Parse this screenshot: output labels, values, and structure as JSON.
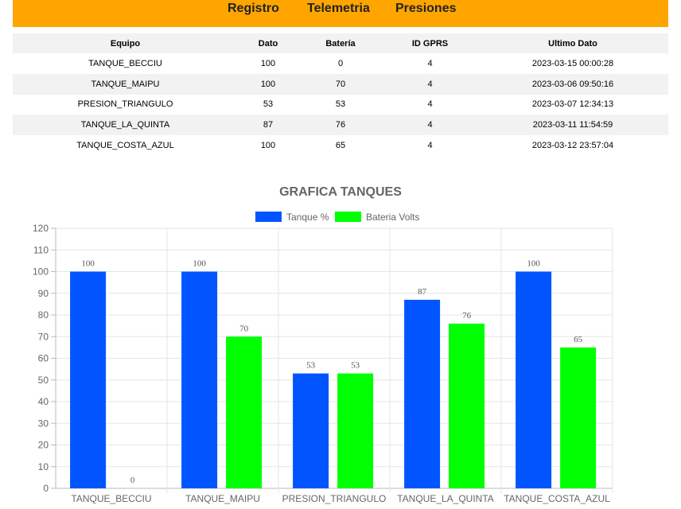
{
  "nav": {
    "links": [
      "Registro",
      "Telemetria",
      "Presiones"
    ]
  },
  "table": {
    "headers": [
      "Equipo",
      "Dato",
      "Batería",
      "ID GPRS",
      "Ultimo Dato"
    ],
    "rows": [
      [
        "TANQUE_BECCIU",
        "100",
        "0",
        "4",
        "2023-03-15 00:00:28"
      ],
      [
        "TANQUE_MAIPU",
        "100",
        "70",
        "4",
        "2023-03-06 09:50:16"
      ],
      [
        "PRESION_TRIANGULO",
        "53",
        "53",
        "4",
        "2023-03-07 12:34:13"
      ],
      [
        "TANQUE_LA_QUINTA",
        "87",
        "76",
        "4",
        "2023-03-11 11:54:59"
      ],
      [
        "TANQUE_COSTA_AZUL",
        "100",
        "65",
        "4",
        "2023-03-12 23:57:04"
      ]
    ]
  },
  "colors": {
    "header_bar": "#ffa500",
    "series_tanque": "#0055ff",
    "series_bateria": "#00ff00"
  },
  "chart_data": {
    "type": "bar",
    "title": "GRAFICA TANQUES",
    "categories": [
      "TANQUE_BECCIU",
      "TANQUE_MAIPU",
      "PRESION_TRIANGULO",
      "TANQUE_LA_QUINTA",
      "TANQUE_COSTA_AZUL"
    ],
    "series": [
      {
        "name": "Tanque %",
        "values": [
          100,
          100,
          53,
          87,
          100
        ],
        "color": "#0055ff"
      },
      {
        "name": "Bateria Volts",
        "values": [
          0,
          70,
          53,
          76,
          65
        ],
        "color": "#00ff00"
      }
    ],
    "ylim": [
      0,
      120
    ],
    "yticks": [
      0,
      10,
      20,
      30,
      40,
      50,
      60,
      70,
      80,
      90,
      100,
      110,
      120
    ],
    "grid": true,
    "legend": "top-center",
    "data_labels": true
  }
}
